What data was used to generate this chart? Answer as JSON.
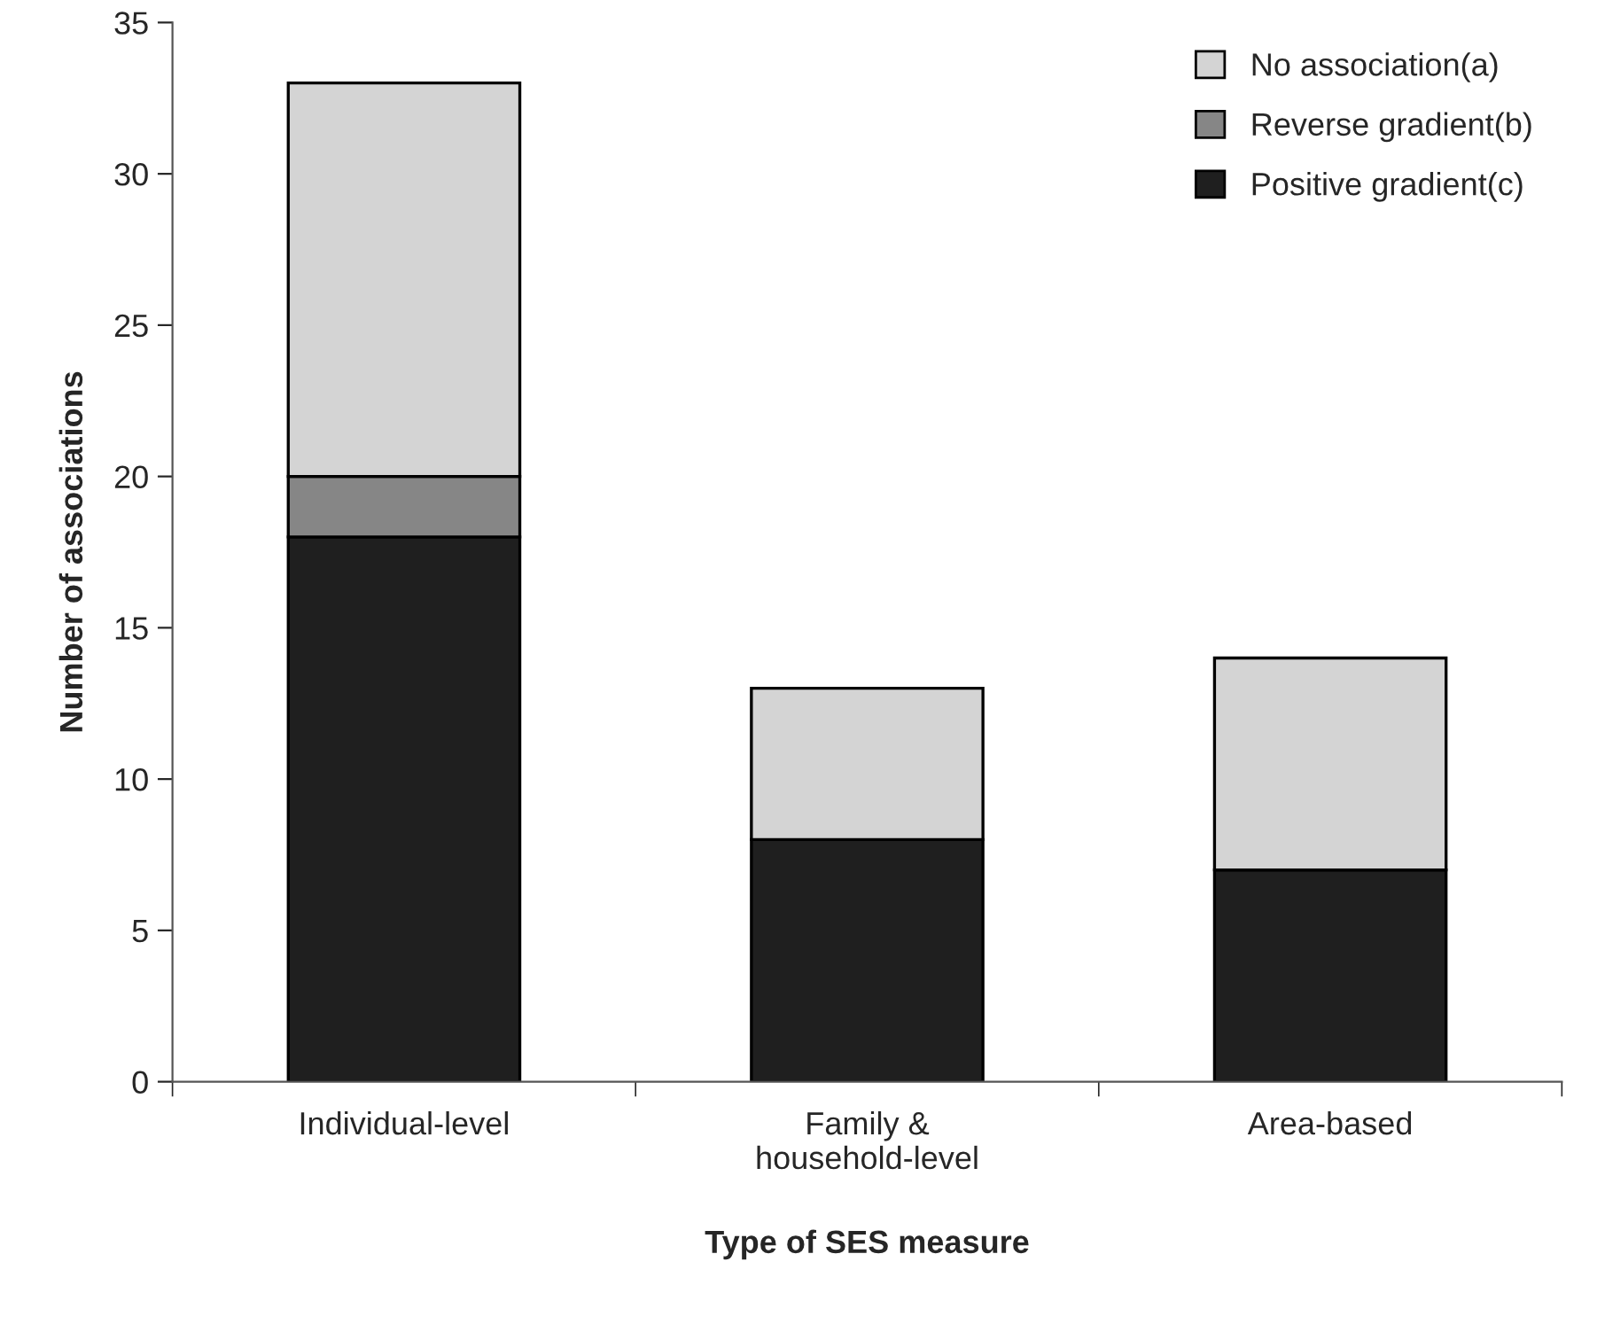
{
  "chart_data": {
    "type": "bar",
    "stacked": true,
    "xlabel": "Type of SES measure",
    "ylabel": "Number of associations",
    "categories": [
      "Individual-level",
      "Family &\nhousehold-level",
      "Area-based"
    ],
    "series": [
      {
        "name": "Positive gradient(c)",
        "color": "#1f1f1f",
        "values": [
          18,
          8,
          7
        ]
      },
      {
        "name": "Reverse gradient(b)",
        "color": "#868686",
        "values": [
          2,
          0,
          0
        ]
      },
      {
        "name": "No association(a)",
        "color": "#d4d4d4",
        "values": [
          13,
          5,
          7
        ]
      }
    ],
    "ylim": [
      0,
      35
    ],
    "yticks": [
      0,
      5,
      10,
      15,
      20,
      25,
      30,
      35
    ],
    "grid": false,
    "legend": "top right"
  }
}
